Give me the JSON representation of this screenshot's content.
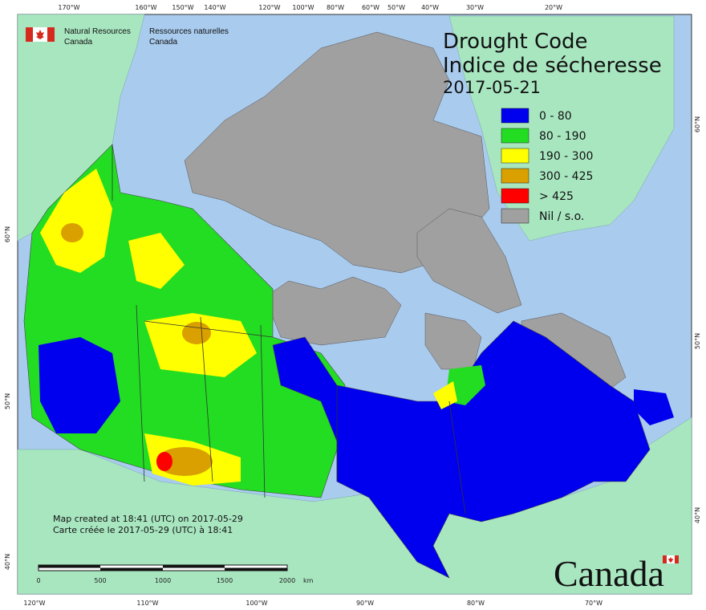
{
  "header": {
    "nrcan_en_line1": "Natural Resources",
    "nrcan_en_line2": "Canada",
    "nrcan_fr_line1": "Ressources naturelles",
    "nrcan_fr_line2": "Canada"
  },
  "title": {
    "line1": "Drought Code",
    "line2": "Indice de sécheresse",
    "date": "2017-05-21"
  },
  "legend": {
    "items": [
      {
        "label": "0 - 80",
        "color": "#0000ee"
      },
      {
        "label": "80 - 190",
        "color": "#22dd22"
      },
      {
        "label": "190 - 300",
        "color": "#ffff00"
      },
      {
        "label": "300 - 425",
        "color": "#d9a000"
      },
      {
        "label": "> 425",
        "color": "#ff0000"
      },
      {
        "label": "Nil / s.o.",
        "color": "#a0a0a0"
      }
    ]
  },
  "top_axis": [
    "170°W",
    "160°W",
    "150°W",
    "140°W",
    "120°W",
    "100°W",
    "80°W",
    "60°W",
    "50°W",
    "40°W",
    "30°W",
    "20°W"
  ],
  "bottom_axis": [
    "120°W",
    "110°W",
    "100°W",
    "90°W",
    "80°W",
    "70°W"
  ],
  "left_axis": [
    "60°N",
    "50°N",
    "40°N"
  ],
  "right_axis": [
    "60°N",
    "50°N",
    "40°N"
  ],
  "footer": {
    "created_en": "Map created at 18:41 (UTC) on 2017-05-29",
    "created_fr": "Carte créée le 2017-05-29 (UTC) à 18:41"
  },
  "scale_bar": {
    "labels": [
      "0",
      "500",
      "1000",
      "1500",
      "2000"
    ],
    "unit": "km"
  },
  "wordmark": "Canada",
  "colors": {
    "ocean": "#a9cbee",
    "land_other": "#a8e6c0",
    "nil": "#a0a0a0"
  }
}
